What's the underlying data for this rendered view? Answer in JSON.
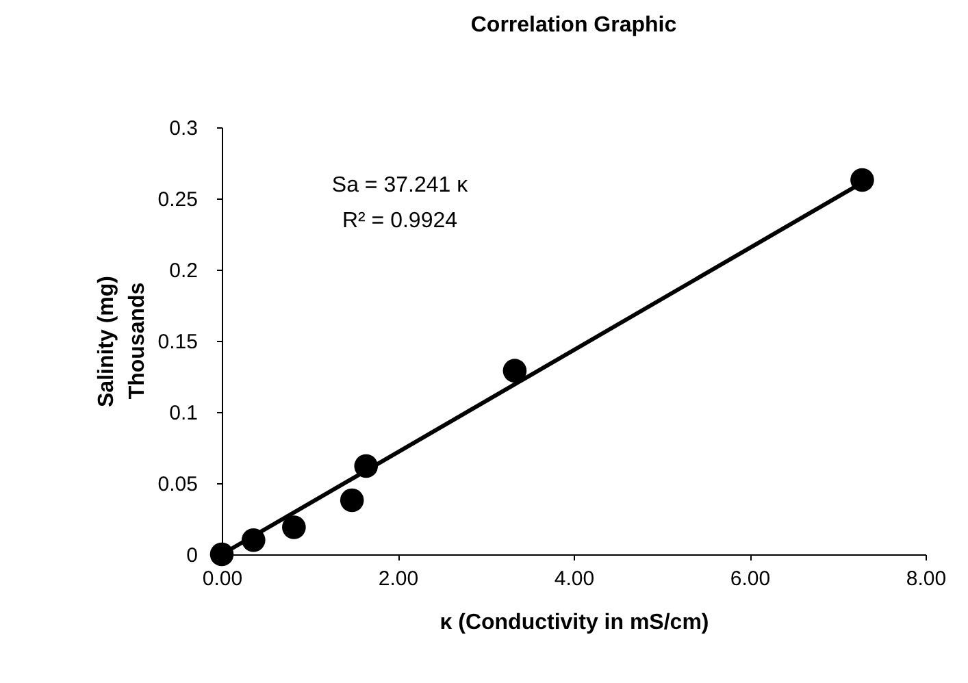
{
  "chart_data": {
    "type": "scatter",
    "title": "Correlation Graphic",
    "xlabel": "κ (Conductivity in mS/cm)",
    "ylabel": "Salinity (mg)",
    "annotations": [
      "Sa = 37.241 κ",
      "R² = 0.9924",
      "Thousands"
    ],
    "series": [
      {
        "color": "#000000",
        "x": [
          0,
          0.36,
          0.82,
          1.48,
          1.64,
          3.33,
          7.28
        ],
        "values": [
          0,
          0.01,
          0.019,
          0.038,
          0.062,
          0.129,
          0.263
        ]
      },
      {
        "type": "line",
        "marker": "none",
        "color": "#000000",
        "x": [
          0,
          7.25
        ],
        "values": [
          0,
          0.26
        ]
      }
    ],
    "xlim": [
      0,
      8
    ],
    "xticks": [
      {
        "value": 0,
        "label": "0.00"
      },
      {
        "value": 2,
        "label": "2.00"
      },
      {
        "value": 4,
        "label": "4.00"
      },
      {
        "value": 6,
        "label": "6.00"
      },
      {
        "value": 8,
        "label": "8.00"
      }
    ],
    "ylim": [
      0,
      0.3
    ],
    "yticks": [
      0,
      0.05,
      0.1,
      0.15,
      0.2,
      0.25,
      0.3
    ],
    "grid": false,
    "marker": "circle",
    "line_style": "solid"
  }
}
